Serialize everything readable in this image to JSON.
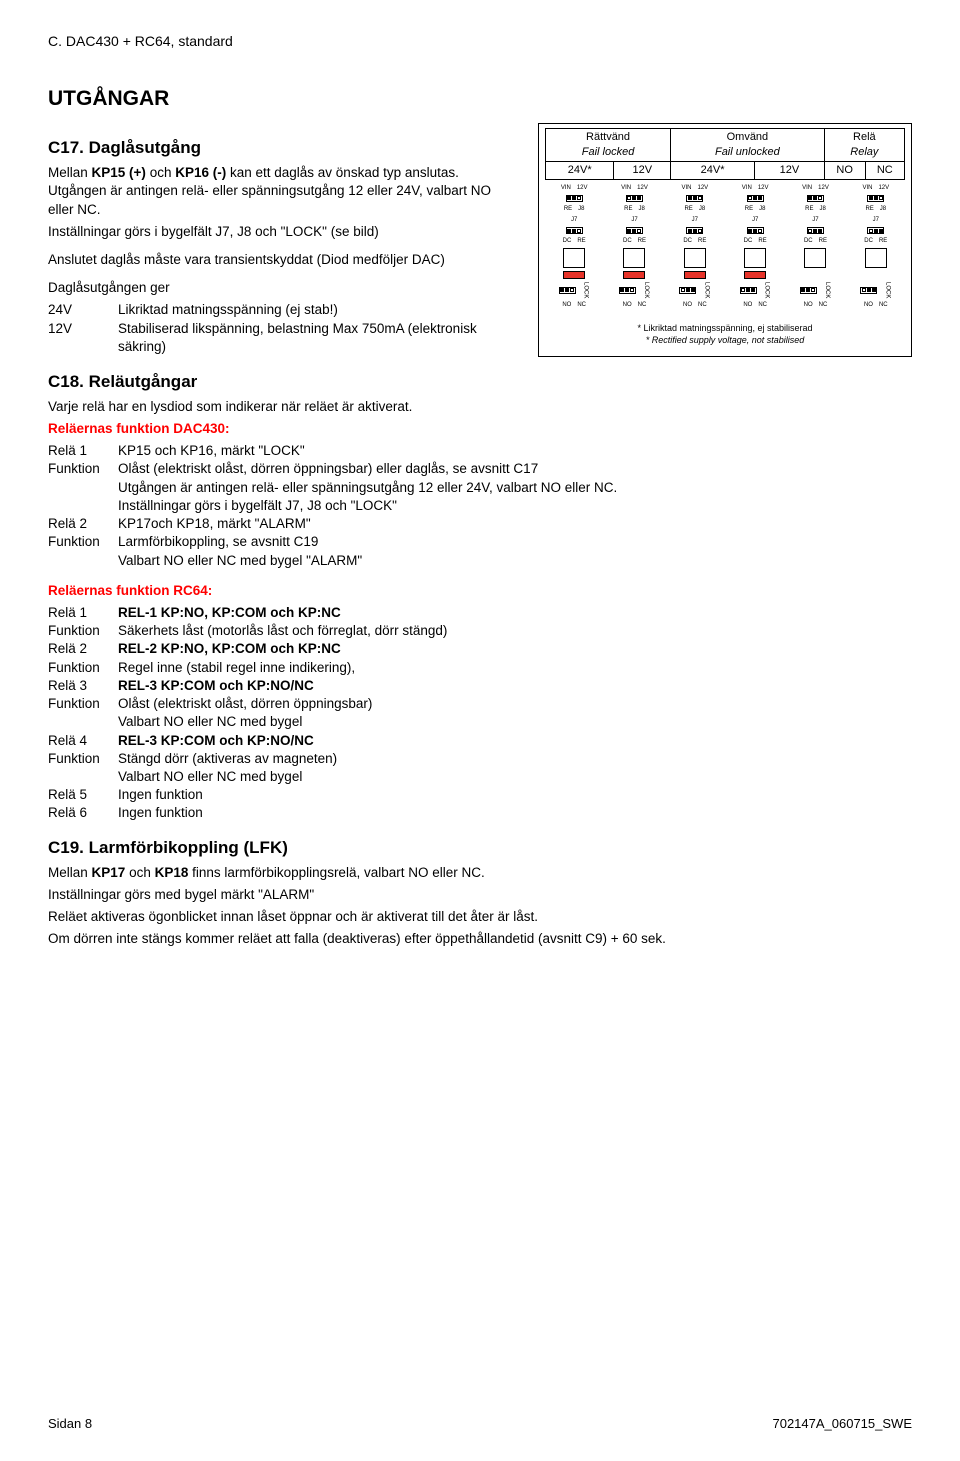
{
  "topTitle": "C. DAC430 + RC64, standard",
  "hUtgangar": "UTGÅNGAR",
  "c17": {
    "title": "C17. Daglåsutgång",
    "p1a": "Mellan ",
    "p1b": "KP15 (+)",
    "p1c": " och ",
    "p1d": "KP16 (-)",
    "p1e": " kan ett daglås av önskad typ anslutas. Utgången är antingen relä- eller spänningsutgång 12 eller 24V, valbart NO eller NC.",
    "p2": "Inställningar görs i bygelfält J7, J8 och \"LOCK\" (se bild)",
    "p3": "Anslutet daglås måste vara transientskyddat (Diod medföljer DAC)",
    "p4": "Daglåsutgången ger",
    "r24l": "24V",
    "r24v": "Likriktad matningsspänning (ej stab!)",
    "r12l": "12V",
    "r12v": "Stabiliserad likspänning, belastning Max 750mA (elektronisk säkring)"
  },
  "diagram": {
    "h1": "Rättvänd",
    "h1b": "Fail locked",
    "h2": "Omvänd",
    "h2b": "Fail unlocked",
    "h3": "Relä",
    "h3b": "Relay",
    "cols": [
      "24V*",
      "12V",
      "24V*",
      "12V",
      "NO",
      "NC"
    ],
    "vin": "VIN",
    "v12": "12V",
    "re": "RE",
    "j8": "J8",
    "j7": "J7",
    "dc": "DC",
    "no": "NO",
    "nc": "NC",
    "lock": "LOCK",
    "foot1": "* Likriktad matningsspänning, ej stabiliserad",
    "foot2": "* Rectified supply voltage, not stabilised"
  },
  "c18": {
    "title": "C18. Reläutgångar",
    "intro": "Varje relä har en lysdiod som indikerar när reläet är aktiverat.",
    "dacTitle": "Reläernas funktion DAC430:",
    "r1l": "Relä 1",
    "r1v": "KP15 och KP16, märkt \"LOCK\"",
    "f1l": "Funktion",
    "f1v": "Olåst (elektriskt olåst, dörren öppningsbar) eller daglås, se avsnitt C17\nUtgången är antingen relä- eller spänningsutgång 12 eller 24V, valbart NO eller NC.\nInställningar görs i bygelfält J7, J8 och \"LOCK\"",
    "r2l": "Relä 2",
    "r2v": "KP17och KP18, märkt \"ALARM\"",
    "f2l": "Funktion",
    "f2v": "Larmförbikoppling, se avsnitt C19\nValbart NO eller NC med bygel \"ALARM\"",
    "rcTitle": "Reläernas funktion RC64:",
    "rc1l": "Relä 1",
    "rc1v": "REL-1 KP:NO, KP:COM och KP:NC",
    "rcf1l": "Funktion",
    "rcf1v": "Säkerhets låst (motorlås låst och förreglat, dörr stängd)",
    "rc2l": "Relä 2",
    "rc2v": "REL-2 KP:NO, KP:COM och KP:NC",
    "rcf2l": "Funktion",
    "rcf2v": "Regel inne (stabil regel inne indikering),",
    "rc3l": "Relä 3",
    "rc3v": "REL-3 KP:COM och KP:NO/NC",
    "rcf3l": "Funktion",
    "rcf3v": "Olåst (elektriskt olåst, dörren öppningsbar)\nValbart NO eller NC med bygel",
    "rc4l": "Relä 4",
    "rc4v": "REL-3 KP:COM och KP:NO/NC",
    "rcf4l": "Funktion",
    "rcf4v": "Stängd dörr (aktiveras av magneten)\nValbart NO eller NC med bygel",
    "rc5l": "Relä 5",
    "rc5v": "Ingen funktion",
    "rc6l": "Relä 6",
    "rc6v": "Ingen funktion"
  },
  "c19": {
    "title": "C19. Larmförbikoppling (LFK)",
    "p1a": "Mellan ",
    "p1b": "KP17",
    "p1c": " och ",
    "p1d": "KP18",
    "p1e": " finns larmförbikopplingsrelä, valbart NO eller NC.",
    "p2": "Inställningar görs med bygel märkt \"ALARM\"",
    "p3": "Reläet aktiveras ögonblicket innan låset öppnar och är aktiverat till det åter är låst.",
    "p4": "Om dörren inte stängs kommer reläet att falla (deaktiveras) efter öppethållandetid (avsnitt C9) + 60 sek."
  },
  "footer": {
    "left": "Sidan 8",
    "right": "702147A_060715_SWE"
  }
}
